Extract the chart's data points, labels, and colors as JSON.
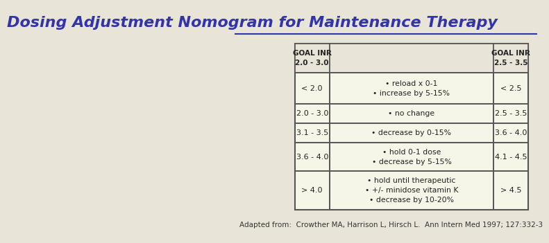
{
  "title": "Dosing Adjustment Nomogram for Maintenance Therapy",
  "title_color": "#3333aa",
  "bg_color": "#e8e4d8",
  "table_bg": "#f5f5e8",
  "border_color": "#555555",
  "header_bg": "#e8e4d8",
  "footnote": "Adapted from:  Crowther MA, Harrison L, Hirsch L.  Ann Intern Med 1997; 127:332-3",
  "col1_header": "GOAL INR\n2.0 - 3.0",
  "col3_header": "GOAL INR\n2.5 - 3.5",
  "rows": [
    {
      "col1": "< 2.0",
      "col2": "• reload x 0-1\n• increase by 5-15%",
      "col3": "< 2.5"
    },
    {
      "col1": "2.0 - 3.0",
      "col2": "• no change",
      "col3": "2.5 - 3.5"
    },
    {
      "col1": "3.1 - 3.5",
      "col2": "• decrease by 0-15%",
      "col3": "3.6 - 4.0"
    },
    {
      "col1": "3.6 - 4.0",
      "col2": "• hold 0-1 dose\n• decrease by 5-15%",
      "col3": "4.1 - 4.5"
    },
    {
      "col1": "> 4.0",
      "col2": "• hold until therapeutic\n• +/- minidose vitamin K\n• decrease by 10-20%",
      "col3": "> 4.5"
    }
  ]
}
